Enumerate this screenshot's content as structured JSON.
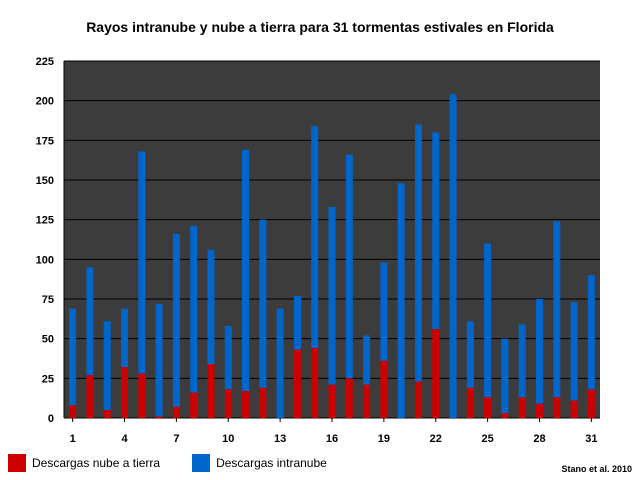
{
  "chart_data": {
    "type": "bar",
    "stacked": true,
    "title": "Rayos intranube y nube a tierra para 31 tormentas estivales en Florida",
    "xlabel": "",
    "ylabel": "",
    "ylim": [
      0,
      225
    ],
    "yticks": [
      0,
      25,
      50,
      75,
      100,
      125,
      150,
      175,
      200,
      225
    ],
    "x": [
      1,
      2,
      3,
      4,
      5,
      6,
      7,
      8,
      9,
      10,
      11,
      12,
      13,
      14,
      15,
      16,
      17,
      18,
      19,
      20,
      21,
      22,
      23,
      24,
      25,
      26,
      27,
      28,
      29,
      30,
      31
    ],
    "xtick_labels": [
      "1",
      "4",
      "7",
      "10",
      "13",
      "16",
      "19",
      "22",
      "25",
      "28",
      "31"
    ],
    "grid": true,
    "legend_position": "bottom-left",
    "series": [
      {
        "name": "Descargas nube a tierra",
        "color": "#cc0000",
        "values": [
          8,
          27,
          5,
          32,
          28,
          1,
          7,
          16,
          34,
          18,
          17,
          19,
          0,
          43,
          44,
          21,
          25,
          21,
          36,
          0,
          23,
          56,
          0,
          19,
          13,
          3,
          13,
          9,
          13,
          11,
          18
        ]
      },
      {
        "name": "Descargas intranube",
        "color": "#0066cc",
        "values": [
          61,
          68,
          56,
          37,
          140,
          71,
          109,
          105,
          72,
          40,
          152,
          106,
          69,
          34,
          140,
          112,
          141,
          31,
          62,
          148,
          162,
          124,
          204,
          42,
          97,
          47,
          46,
          66,
          111,
          62,
          72
        ]
      }
    ],
    "colors": {
      "plot_background": "#3c3c3c",
      "grid": "#000000"
    }
  },
  "credit": "Stano et al. 2010"
}
